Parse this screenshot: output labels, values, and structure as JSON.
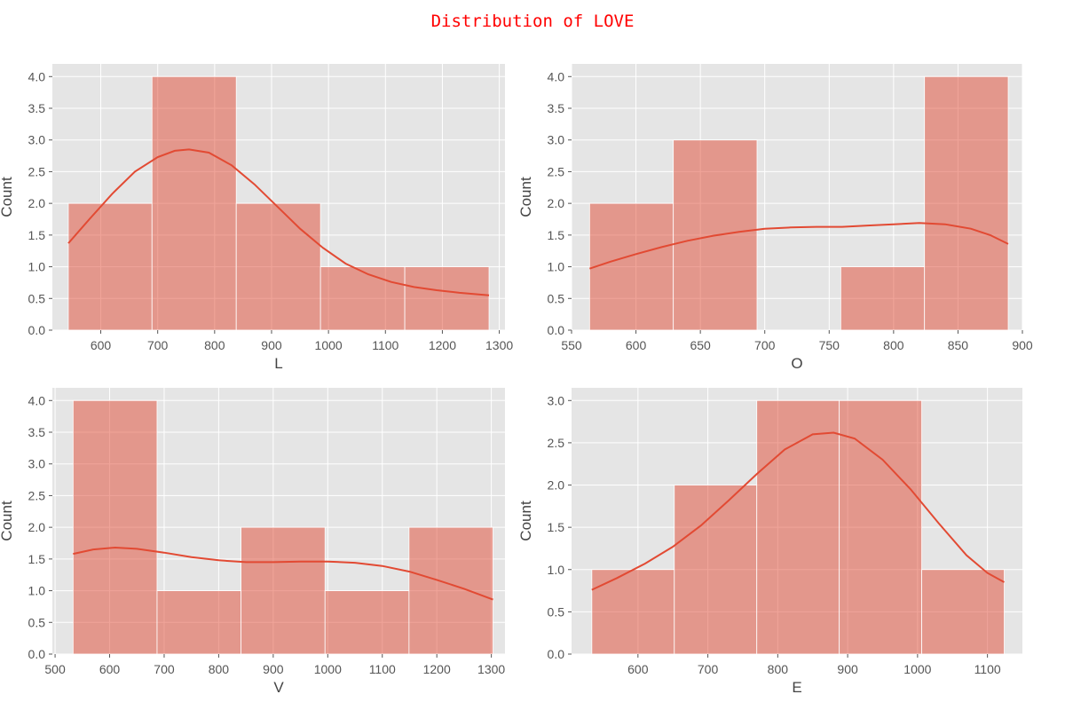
{
  "figure": {
    "suptitle": "Distribution of LOVE"
  },
  "colors": {
    "accent": "#e24a33",
    "background": "#e5e5e5",
    "title": "#ff0000"
  },
  "chart_data": [
    {
      "type": "bar",
      "subtype": "histogram_with_kde",
      "xlabel": "L",
      "ylabel": "Count",
      "xlim": [
        515,
        1310
      ],
      "ylim": [
        0,
        4.2
      ],
      "xticks": [
        600,
        700,
        800,
        900,
        1000,
        1100,
        1200,
        1300
      ],
      "yticks": [
        0.0,
        0.5,
        1.0,
        1.5,
        2.0,
        2.5,
        3.0,
        3.5,
        4.0
      ],
      "bin_edges": [
        543,
        690,
        838,
        986,
        1134,
        1282
      ],
      "counts": [
        2,
        4,
        2,
        1,
        1
      ],
      "kde": {
        "x": [
          543,
          580,
          620,
          660,
          700,
          730,
          755,
          790,
          830,
          870,
          910,
          950,
          990,
          1030,
          1070,
          1110,
          1150,
          1190,
          1230,
          1282
        ],
        "y": [
          1.37,
          1.75,
          2.15,
          2.5,
          2.73,
          2.83,
          2.85,
          2.8,
          2.6,
          2.3,
          1.95,
          1.6,
          1.3,
          1.05,
          0.88,
          0.76,
          0.68,
          0.63,
          0.59,
          0.55
        ]
      },
      "grid": true
    },
    {
      "type": "bar",
      "subtype": "histogram_with_kde",
      "xlabel": "O",
      "ylabel": "Count",
      "xlim": [
        550,
        900
      ],
      "ylim": [
        0,
        4.2
      ],
      "xticks": [
        550,
        600,
        650,
        700,
        750,
        800,
        850,
        900
      ],
      "yticks": [
        0.0,
        0.5,
        1.0,
        1.5,
        2.0,
        2.5,
        3.0,
        3.5,
        4.0
      ],
      "bin_edges": [
        564,
        629,
        694,
        759,
        824,
        889
      ],
      "counts": [
        2,
        3,
        0,
        1,
        4
      ],
      "kde": {
        "x": [
          564,
          580,
          600,
          620,
          640,
          660,
          680,
          700,
          720,
          740,
          760,
          780,
          800,
          820,
          840,
          860,
          875,
          889
        ],
        "y": [
          0.97,
          1.08,
          1.2,
          1.31,
          1.41,
          1.49,
          1.55,
          1.6,
          1.62,
          1.63,
          1.63,
          1.65,
          1.67,
          1.69,
          1.67,
          1.6,
          1.5,
          1.36
        ]
      },
      "grid": true
    },
    {
      "type": "bar",
      "subtype": "histogram_with_kde",
      "xlabel": "V",
      "ylabel": "Count",
      "xlim": [
        495,
        1325
      ],
      "ylim": [
        0,
        4.2
      ],
      "xticks": [
        500,
        600,
        700,
        800,
        900,
        1000,
        1100,
        1200,
        1300
      ],
      "yticks": [
        0.0,
        0.5,
        1.0,
        1.5,
        2.0,
        2.5,
        3.0,
        3.5,
        4.0
      ],
      "bin_edges": [
        533,
        687,
        841,
        995,
        1149,
        1303
      ],
      "counts": [
        4,
        1,
        2,
        1,
        2
      ],
      "kde": {
        "x": [
          533,
          570,
          610,
          650,
          700,
          750,
          800,
          850,
          900,
          950,
          1000,
          1050,
          1100,
          1150,
          1200,
          1250,
          1303
        ],
        "y": [
          1.58,
          1.65,
          1.68,
          1.66,
          1.6,
          1.53,
          1.48,
          1.45,
          1.45,
          1.46,
          1.46,
          1.44,
          1.39,
          1.3,
          1.17,
          1.03,
          0.86
        ]
      },
      "grid": true
    },
    {
      "type": "bar",
      "subtype": "histogram_with_kde",
      "xlabel": "E",
      "ylabel": "Count",
      "xlim": [
        505,
        1150
      ],
      "ylim": [
        0,
        3.15
      ],
      "xticks": [
        600,
        700,
        800,
        900,
        1000,
        1100
      ],
      "yticks": [
        0.0,
        0.5,
        1.0,
        1.5,
        2.0,
        2.5,
        3.0
      ],
      "bin_edges": [
        534,
        652,
        770,
        888,
        1006,
        1124
      ],
      "counts": [
        1,
        2,
        3,
        3,
        1
      ],
      "kde": {
        "x": [
          534,
          570,
          610,
          650,
          690,
          730,
          770,
          810,
          850,
          880,
          910,
          950,
          990,
          1030,
          1070,
          1100,
          1124
        ],
        "y": [
          0.76,
          0.9,
          1.07,
          1.27,
          1.52,
          1.82,
          2.13,
          2.42,
          2.6,
          2.62,
          2.55,
          2.3,
          1.95,
          1.55,
          1.17,
          0.96,
          0.85
        ]
      },
      "grid": true
    }
  ]
}
